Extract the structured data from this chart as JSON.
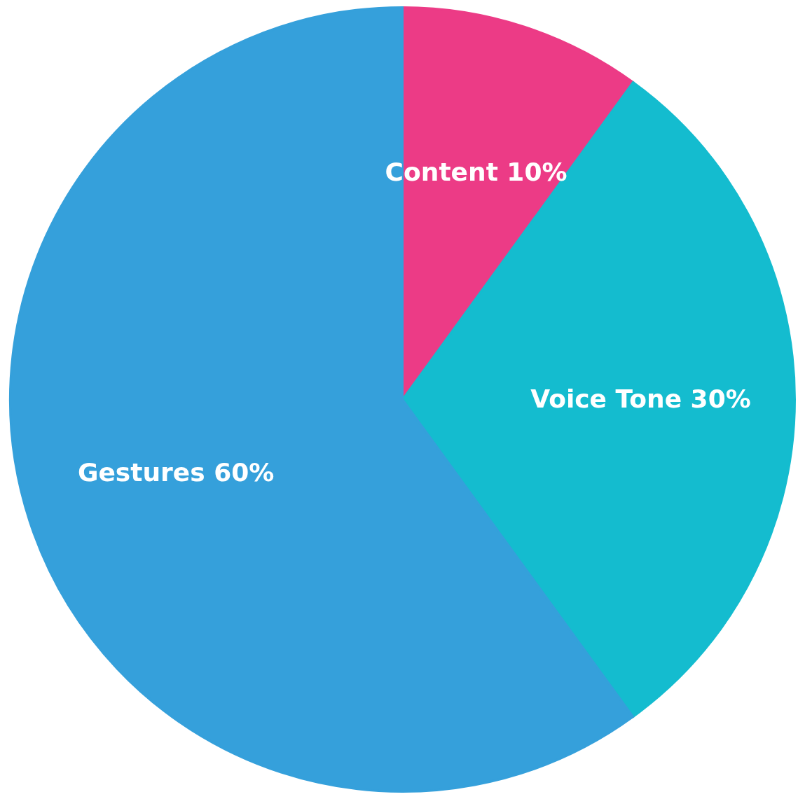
{
  "chart_data": {
    "type": "pie",
    "categories": [
      "Content",
      "Voice Tone",
      "Gestures"
    ],
    "values": [
      10,
      30,
      60
    ],
    "value_labels": [
      "10%",
      "30%",
      "60%"
    ],
    "colors": [
      "#ec3b86",
      "#14bccf",
      "#35a0db"
    ]
  }
}
